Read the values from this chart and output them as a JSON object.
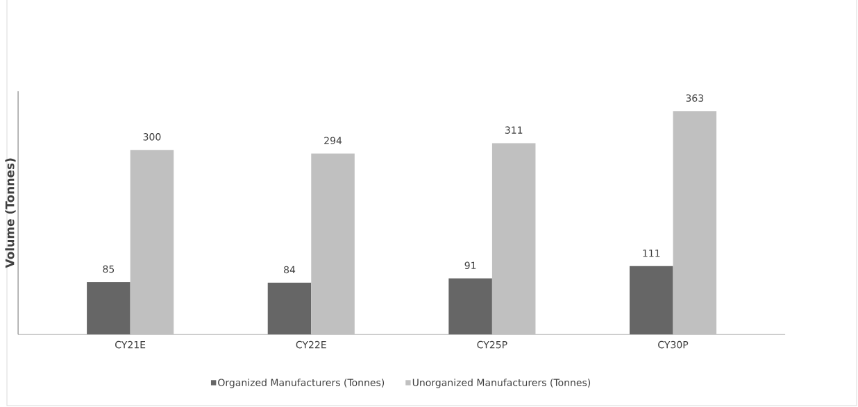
{
  "chart_data": {
    "type": "bar",
    "ylabel": "Volume (Tonnes)",
    "categories": [
      "CY21E",
      "CY22E",
      "CY25P",
      "CY30P"
    ],
    "series": [
      {
        "name": "Organized Manufacturers (Tonnes)",
        "color": "#666666",
        "values": [
          85,
          84,
          91,
          111
        ]
      },
      {
        "name": "Unorganized Manufacturers (Tonnes)",
        "color": "#c0c0c0",
        "values": [
          300,
          294,
          311,
          363
        ]
      }
    ],
    "data_labels": true,
    "legend": "bottom",
    "grid": false
  }
}
